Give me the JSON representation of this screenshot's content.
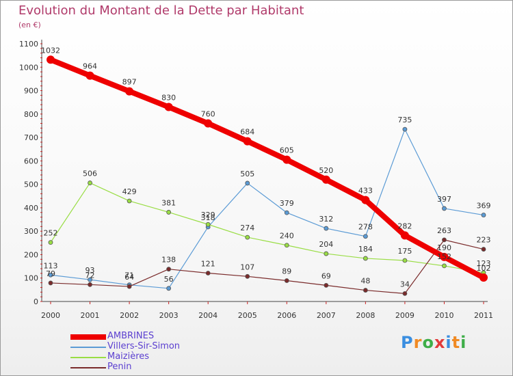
{
  "title": "Evolution du Montant de la Dette par Habitant",
  "unit": "(en €)",
  "logo": "Proxiti",
  "chart_data": {
    "type": "line",
    "x": [
      "2000",
      "2001",
      "2002",
      "2003",
      "2004",
      "2005",
      "2006",
      "2007",
      "2008",
      "2009",
      "2010",
      "2011"
    ],
    "ylim": [
      0,
      1100
    ],
    "yticks": [
      0,
      100,
      200,
      300,
      400,
      500,
      600,
      700,
      800,
      900,
      1000,
      1100
    ],
    "grid": false,
    "legend_placement": "bottom-left",
    "series": [
      {
        "name": "AMBRINES",
        "color": "#ee0000",
        "width": 8,
        "marker": 6,
        "values": [
          1032,
          964,
          897,
          830,
          760,
          684,
          605,
          520,
          433,
          282,
          190,
          102
        ]
      },
      {
        "name": "Villers-Sir-Simon",
        "color": "#5b9bd5",
        "width": 1.2,
        "marker": 3,
        "values": [
          113,
          93,
          71,
          56,
          318,
          505,
          379,
          312,
          278,
          735,
          397,
          369
        ]
      },
      {
        "name": "Maizières",
        "color": "#99dd44",
        "width": 1.2,
        "marker": 3,
        "values": [
          252,
          506,
          429,
          381,
          329,
          274,
          240,
          204,
          184,
          175,
          152,
          123
        ]
      },
      {
        "name": "Penin",
        "color": "#7a2b2b",
        "width": 1.2,
        "marker": 3,
        "values": [
          79,
          72,
          64,
          138,
          121,
          107,
          89,
          69,
          48,
          34,
          263,
          223
        ]
      }
    ]
  }
}
